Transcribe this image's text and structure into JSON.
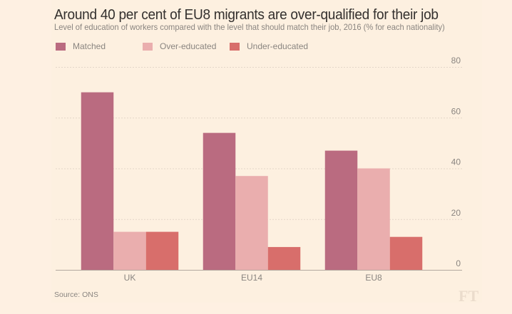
{
  "header": {
    "title": "Around 40 per cent of EU8 migrants are over-qualified for their job",
    "subtitle": "Level of education of workers compared with the level that should match their job, 2016 (% for each nationality)"
  },
  "footer": {
    "source": "Source: ONS",
    "logo": "FT"
  },
  "colors": {
    "Matched": "#ba6b80",
    "Over-educated": "#eaaeae",
    "Under-educated": "#d86e6b"
  },
  "chart_data": {
    "type": "bar",
    "title": "Around 40 per cent of EU8 migrants are over-qualified for their job",
    "subtitle": "Level of education of workers compared with the level that should match their job, 2016 (% for each nationality)",
    "categories": [
      "UK",
      "EU14",
      "EU8"
    ],
    "series": [
      {
        "name": "Matched",
        "values": [
          70,
          54,
          47
        ]
      },
      {
        "name": "Over-educated",
        "values": [
          15,
          37,
          40
        ]
      },
      {
        "name": "Under-educated",
        "values": [
          15,
          9,
          13
        ]
      }
    ],
    "xlabel": "",
    "ylabel": "",
    "ylim": [
      0,
      80
    ],
    "yticks": [
      0,
      20,
      40,
      60,
      80
    ],
    "grid": true,
    "legend": "top-left",
    "source": "Source: ONS"
  }
}
